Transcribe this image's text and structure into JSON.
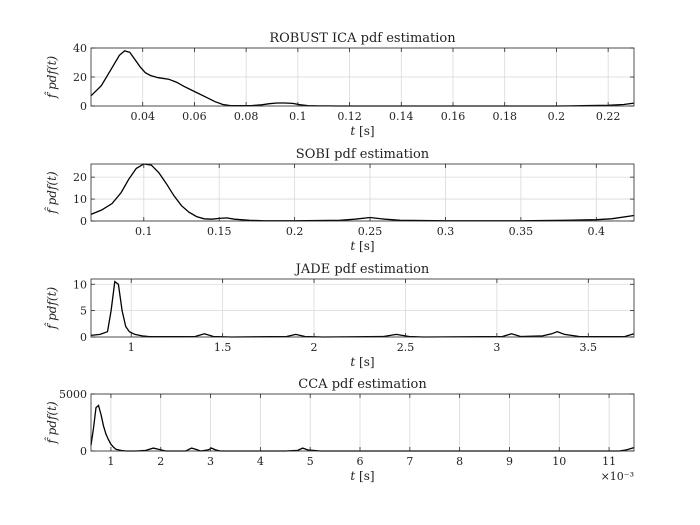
{
  "chart_data": [
    {
      "type": "line",
      "title": "ROBUST ICA pdf estimation",
      "xlabel": "t",
      "xunit": "[s]",
      "ylabel": "f̂ pdf(t)",
      "xlim": [
        0.02,
        0.23
      ],
      "ylim": [
        0,
        40
      ],
      "xticks": [
        0.04,
        0.06,
        0.08,
        0.1,
        0.12,
        0.14,
        0.16,
        0.18,
        0.2,
        0.22
      ],
      "xtick_labels": [
        "0.04",
        "0.06",
        "0.08",
        "0.1",
        "0.12",
        "0.14",
        "0.16",
        "0.18",
        "0.2",
        "0.22"
      ],
      "yticks": [
        0,
        20,
        40
      ],
      "ytick_labels": [
        "0",
        "20",
        "40"
      ],
      "grid": true,
      "series": [
        {
          "x": [
            0.02,
            0.024,
            0.028,
            0.031,
            0.033,
            0.035,
            0.037,
            0.039,
            0.041,
            0.043,
            0.046,
            0.05,
            0.053,
            0.056,
            0.06,
            0.064,
            0.068,
            0.071,
            0.074,
            0.078,
            0.082,
            0.086,
            0.089,
            0.092,
            0.095,
            0.098,
            0.101,
            0.104,
            0.108,
            0.112,
            0.116,
            0.2,
            0.205,
            0.21,
            0.22,
            0.226,
            0.23
          ],
          "y": [
            7,
            14,
            26,
            35,
            38,
            37,
            32,
            27,
            23,
            21,
            19.5,
            18.5,
            16.5,
            13.5,
            10,
            6.5,
            3,
            1,
            0.3,
            0.2,
            0.3,
            0.8,
            1.6,
            2.1,
            2.1,
            1.8,
            0.8,
            0.3,
            0.1,
            0.05,
            0,
            0,
            0.1,
            0.2,
            0.5,
            1,
            2
          ]
        }
      ]
    },
    {
      "type": "line",
      "title": "SOBI pdf estimation",
      "xlabel": "t",
      "xunit": "[s]",
      "ylabel": "f̂ pdf(t)",
      "xlim": [
        0.065,
        0.425
      ],
      "ylim": [
        0,
        26
      ],
      "xticks": [
        0.1,
        0.15,
        0.2,
        0.25,
        0.3,
        0.35,
        0.4
      ],
      "xtick_labels": [
        "0.1",
        "0.15",
        "0.2",
        "0.25",
        "0.3",
        "0.35",
        "0.4"
      ],
      "yticks": [
        0,
        10,
        20
      ],
      "ytick_labels": [
        "0",
        "10",
        "20"
      ],
      "grid": true,
      "series": [
        {
          "x": [
            0.065,
            0.072,
            0.079,
            0.085,
            0.09,
            0.095,
            0.1,
            0.105,
            0.11,
            0.115,
            0.12,
            0.125,
            0.13,
            0.135,
            0.14,
            0.145,
            0.15,
            0.155,
            0.16,
            0.17,
            0.18,
            0.2,
            0.23,
            0.24,
            0.25,
            0.26,
            0.27,
            0.3,
            0.35,
            0.38,
            0.4,
            0.41,
            0.425
          ],
          "y": [
            3,
            5,
            8,
            13,
            19,
            24,
            26,
            25.5,
            22,
            17,
            11.5,
            7,
            4,
            2,
            1,
            0.8,
            1.2,
            1.4,
            0.8,
            0.3,
            0.1,
            0.1,
            0.3,
            0.8,
            1.6,
            0.8,
            0.3,
            0.1,
            0.1,
            0.3,
            0.6,
            1,
            2.5
          ]
        }
      ]
    },
    {
      "type": "line",
      "title": "JADE pdf estimation",
      "xlabel": "t",
      "xunit": "[s]",
      "ylabel": "f̂ pdf(t)",
      "xlim": [
        0.78,
        3.75
      ],
      "ylim": [
        0,
        11
      ],
      "xticks": [
        1,
        1.5,
        2,
        2.5,
        3,
        3.5
      ],
      "xtick_labels": [
        "1",
        "1.5",
        "2",
        "2.5",
        "3",
        "3.5"
      ],
      "yticks": [
        0,
        5,
        10
      ],
      "ytick_labels": [
        "0",
        "5",
        "10"
      ],
      "grid": true,
      "series": [
        {
          "x": [
            0.78,
            0.83,
            0.87,
            0.89,
            0.91,
            0.93,
            0.95,
            0.97,
            0.99,
            1.02,
            1.06,
            1.1,
            1.2,
            1.35,
            1.4,
            1.45,
            1.55,
            1.85,
            1.9,
            1.95,
            2.05,
            2.38,
            2.45,
            2.52,
            2.6,
            3.03,
            3.08,
            3.13,
            3.25,
            3.3,
            3.33,
            3.37,
            3.45,
            3.65,
            3.7,
            3.75
          ],
          "y": [
            0.3,
            0.5,
            1,
            5,
            10.5,
            10,
            5,
            2,
            1,
            0.5,
            0.2,
            0.05,
            0.05,
            0.1,
            0.6,
            0.1,
            0,
            0.1,
            0.5,
            0.1,
            0,
            0.1,
            0.5,
            0.1,
            0,
            0.1,
            0.6,
            0.1,
            0.2,
            0.6,
            1,
            0.5,
            0.1,
            0.05,
            0.1,
            0.6
          ]
        }
      ]
    },
    {
      "type": "line",
      "title": "CCA pdf estimation",
      "xlabel": "t",
      "xunit": "[s]",
      "ylabel": "f̂ pdf(t)",
      "x_multiplier": "×10⁻³",
      "xlim": [
        0.6,
        11.5
      ],
      "ylim": [
        0,
        5000
      ],
      "xticks": [
        1,
        2,
        3,
        4,
        5,
        6,
        7,
        8,
        9,
        10,
        11
      ],
      "xtick_labels": [
        "1",
        "2",
        "3",
        "4",
        "5",
        "6",
        "7",
        "8",
        "9",
        "10",
        "11"
      ],
      "yticks": [
        0,
        5000
      ],
      "ytick_labels": [
        "0",
        "5000"
      ],
      "grid": true,
      "series": [
        {
          "x": [
            0.6,
            0.65,
            0.7,
            0.75,
            0.8,
            0.85,
            0.9,
            0.95,
            1.0,
            1.05,
            1.1,
            1.2,
            1.3,
            1.5,
            1.7,
            1.85,
            1.95,
            2.1,
            2.5,
            2.62,
            2.7,
            2.8,
            2.95,
            3.02,
            3.1,
            3.2,
            4.5,
            4.75,
            4.85,
            4.95,
            5.2,
            11.2,
            11.35,
            11.5
          ],
          "y": [
            500,
            2000,
            3800,
            4000,
            3200,
            2200,
            1500,
            1000,
            600,
            350,
            150,
            50,
            0,
            0,
            50,
            250,
            150,
            0,
            0,
            250,
            150,
            0,
            100,
            250,
            100,
            0,
            0,
            50,
            250,
            100,
            0,
            0,
            100,
            300
          ]
        }
      ]
    }
  ]
}
